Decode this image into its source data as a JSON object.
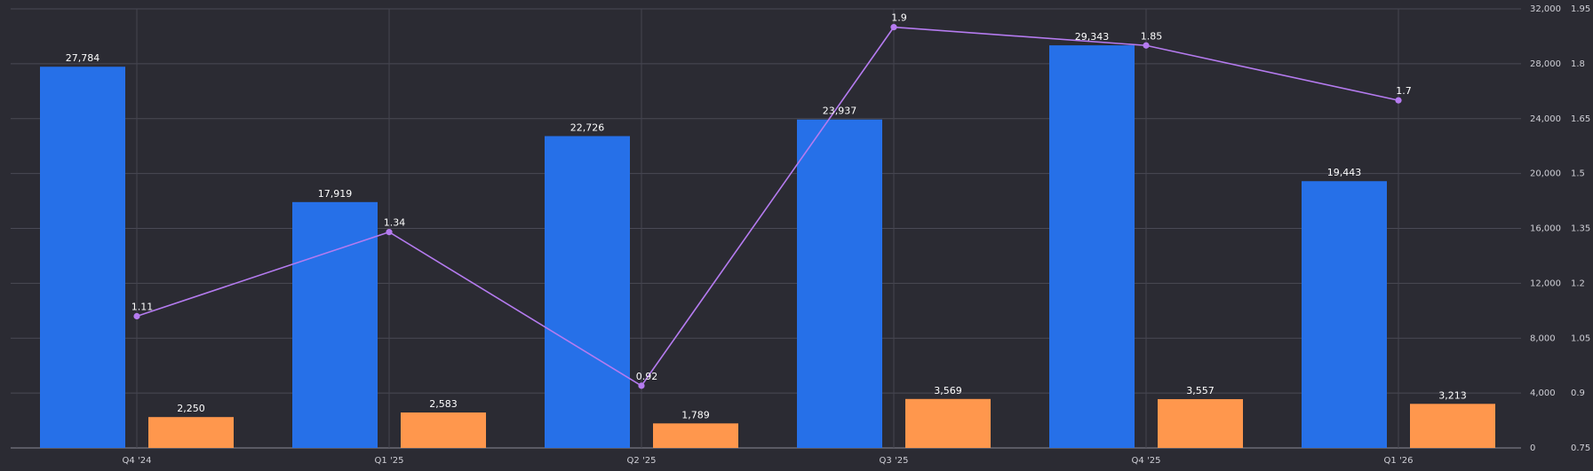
{
  "chart_data": {
    "type": "bar",
    "categories": [
      "Q4 '24",
      "Q1 '25",
      "Q2 '25",
      "Q3 '25",
      "Q4 '25",
      "Q1 '26"
    ],
    "series": [
      {
        "kind": "bar",
        "axis": "left",
        "color": "#2670e8",
        "values": [
          27784,
          17919,
          22726,
          23937,
          29343,
          19443
        ],
        "labels": [
          "27,784",
          "17,919",
          "22,726",
          "23,937",
          "29,343",
          "19,443"
        ]
      },
      {
        "kind": "bar",
        "axis": "left",
        "color": "#ff974d",
        "values": [
          2250,
          2583,
          1789,
          3569,
          3557,
          3213
        ],
        "labels": [
          "2,250",
          "2,583",
          "1,789",
          "3,569",
          "3,557",
          "3,213"
        ]
      },
      {
        "kind": "line",
        "axis": "right",
        "color": "#b57bf0",
        "values": [
          1.11,
          1.34,
          0.92,
          1.9,
          1.85,
          1.7
        ],
        "labels": [
          "1.11",
          "1.34",
          "0.92",
          "1.9",
          "1.85",
          "1.7"
        ]
      }
    ],
    "y_left": {
      "ylim": [
        0,
        32000
      ],
      "ticks": [
        0,
        4000,
        8000,
        12000,
        16000,
        20000,
        24000,
        28000,
        32000
      ],
      "tick_labels": [
        "0",
        "4,000",
        "8,000",
        "12,000",
        "16,000",
        "20,000",
        "24,000",
        "28,000",
        "32,000"
      ]
    },
    "y_right": {
      "ylim": [
        0.75,
        1.95
      ],
      "ticks": [
        0.75,
        0.9,
        1.05,
        1.2,
        1.35,
        1.5,
        1.65,
        1.8,
        1.95
      ],
      "tick_labels": [
        "0.75",
        "0.9",
        "1.05",
        "1.2",
        "1.35",
        "1.5",
        "1.65",
        "1.8",
        "1.95"
      ]
    },
    "x_tick_labels": [
      "Q4 '24",
      "Q1 '25",
      "Q2 '25",
      "Q3 '25",
      "Q4 '25",
      "Q1 '26"
    ],
    "grid": true,
    "legend": "none"
  }
}
